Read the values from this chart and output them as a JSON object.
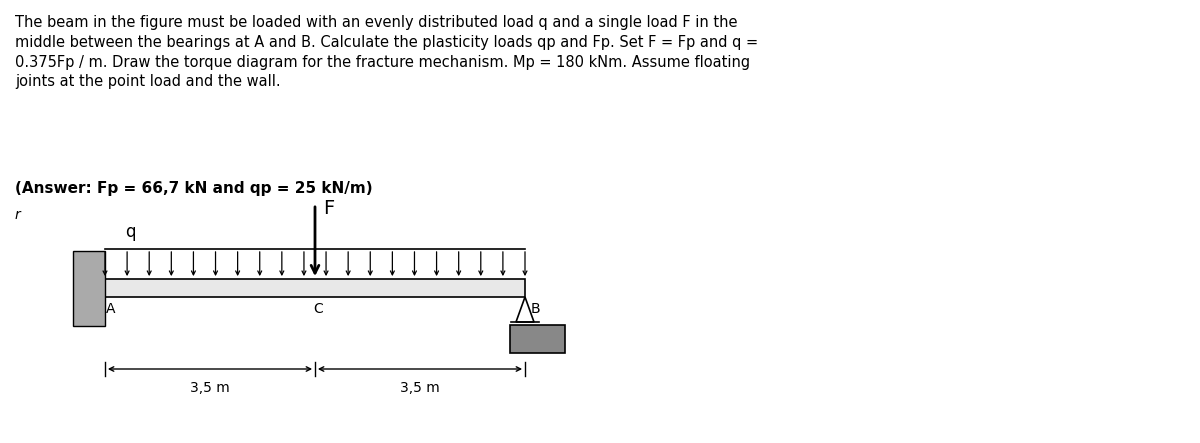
{
  "title_text": "The beam in the figure must be loaded with an evenly distributed load q and a single load F in the\nmiddle between the bearings at A and B. Calculate the plasticity loads qp and Fp. Set F = Fp and q =\n0.375Fp / m. Draw the torque diagram for the fracture mechanism. Mp = 180 kNm. Assume floating\njoints at the point load and the wall.",
  "answer_text": "(Answer: Fp = 66,7 kN and qp = 25 kN/m)",
  "wall_color": "#aaaaaa",
  "support_color": "#888888",
  "bg_color": "#ffffff",
  "beam_fill": "#e8e8e8",
  "label_A": "A",
  "label_B": "B",
  "label_C": "C",
  "label_q": "q",
  "label_F": "F",
  "label_r": "r",
  "dim_left": "3,5 m",
  "dim_right": "3,5 m",
  "n_arrows": 20,
  "arrow_color": "#000000",
  "title_fontsize": 10.5,
  "answer_fontsize": 11,
  "label_fontsize": 10
}
